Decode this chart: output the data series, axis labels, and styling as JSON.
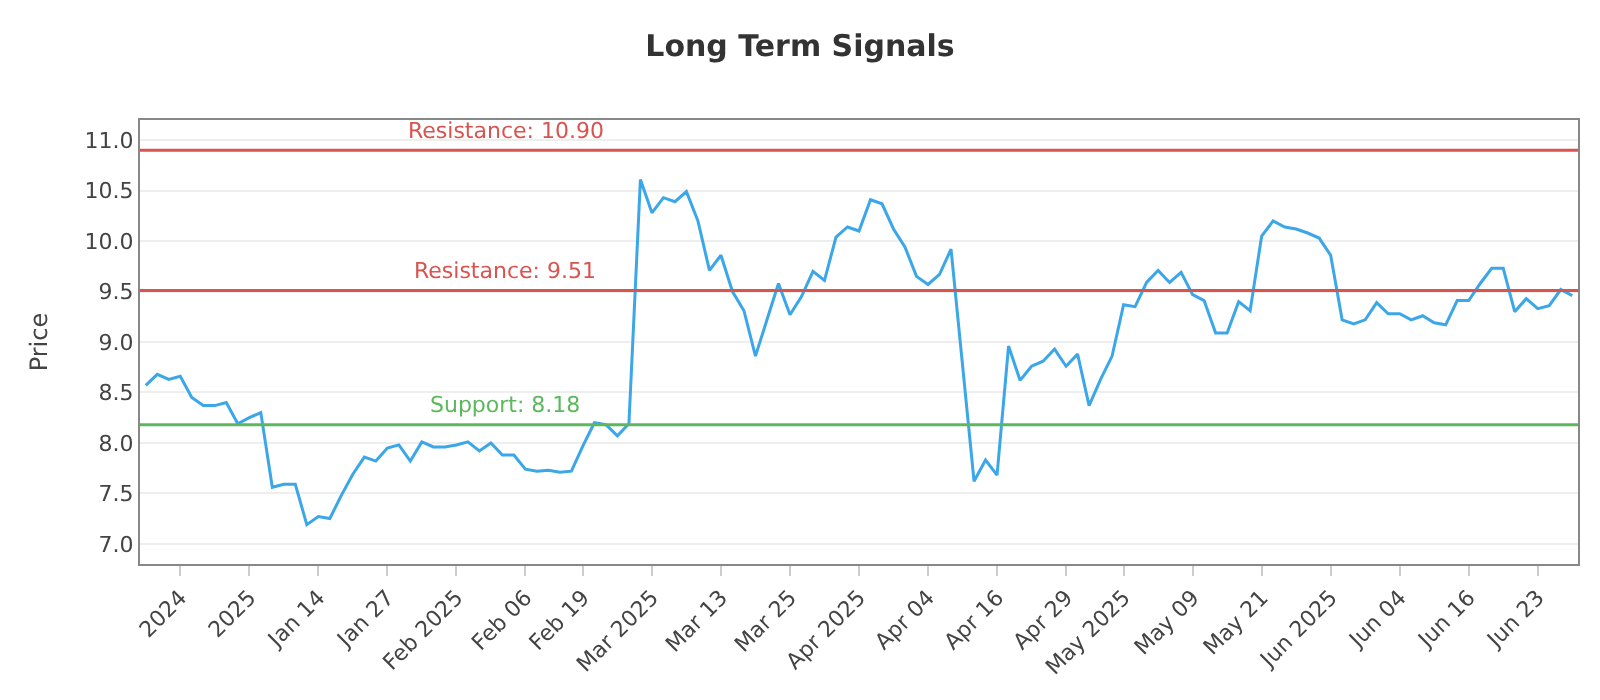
{
  "chart_data": {
    "type": "line",
    "title": "Long Term Signals",
    "ylabel": "Price",
    "categories": [
      null,
      null,
      null,
      "2024",
      null,
      null,
      null,
      null,
      null,
      "2025",
      null,
      null,
      null,
      null,
      null,
      "Jan 14",
      null,
      null,
      null,
      null,
      null,
      "Jan 27",
      null,
      null,
      null,
      null,
      null,
      "Feb 2025",
      null,
      null,
      null,
      null,
      null,
      "Feb 06",
      null,
      null,
      null,
      null,
      "Feb 19",
      null,
      null,
      null,
      null,
      null,
      "Mar 2025",
      null,
      null,
      null,
      null,
      null,
      "Mar 13",
      null,
      null,
      null,
      null,
      null,
      "Mar 25",
      null,
      null,
      null,
      null,
      null,
      "Apr 2025",
      null,
      null,
      null,
      null,
      null,
      "Apr 04",
      null,
      null,
      null,
      null,
      null,
      "Apr 16",
      null,
      null,
      null,
      null,
      null,
      "Apr 29",
      null,
      null,
      null,
      null,
      "May 2025",
      null,
      null,
      null,
      null,
      null,
      "May 09",
      null,
      null,
      null,
      null,
      null,
      "May 21",
      null,
      null,
      null,
      null,
      null,
      "Jun 2025",
      null,
      null,
      null,
      null,
      null,
      "Jun 04",
      null,
      null,
      null,
      null,
      null,
      "Jun 16",
      null,
      null,
      null,
      null,
      null,
      "Jun 23",
      null,
      null,
      null
    ],
    "series": [
      {
        "color": "#3ba6e8",
        "values": [
          8.57,
          8.68,
          8.63,
          8.66,
          8.45,
          8.37,
          8.37,
          8.4,
          8.19,
          8.25,
          8.3,
          7.56,
          7.59,
          7.59,
          7.19,
          7.27,
          7.25,
          7.48,
          7.69,
          7.86,
          7.82,
          7.95,
          7.98,
          7.82,
          8.01,
          7.96,
          7.96,
          7.98,
          8.01,
          7.92,
          8.0,
          7.88,
          7.88,
          7.74,
          7.72,
          7.73,
          7.71,
          7.72,
          7.97,
          8.2,
          8.18,
          8.07,
          8.19,
          10.61,
          10.28,
          10.43,
          10.39,
          10.49,
          10.2,
          9.71,
          9.86,
          9.5,
          9.31,
          8.86,
          9.22,
          9.58,
          9.27,
          9.45,
          9.7,
          9.61,
          10.04,
          10.14,
          10.1,
          10.41,
          10.37,
          10.12,
          9.94,
          9.65,
          9.57,
          9.67,
          9.92,
          8.77,
          7.62,
          7.83,
          7.68,
          8.96,
          8.62,
          8.76,
          8.81,
          8.93,
          8.76,
          8.88,
          8.37,
          8.63,
          8.86,
          9.37,
          9.35,
          9.59,
          9.71,
          9.59,
          9.69,
          9.47,
          9.41,
          9.09,
          9.09,
          9.4,
          9.31,
          10.05,
          10.2,
          10.14,
          10.12,
          10.08,
          10.03,
          9.86,
          9.22,
          9.18,
          9.22,
          9.39,
          9.28,
          9.28,
          9.22,
          9.26,
          9.19,
          9.17,
          9.41,
          9.41,
          9.58,
          9.73,
          9.73,
          9.3,
          9.43,
          9.33,
          9.36,
          9.52,
          9.46
        ]
      }
    ],
    "ylim": [
      6.8,
      11.2
    ],
    "yticks": [
      {
        "value": 7.0,
        "label": "7.0"
      },
      {
        "value": 7.5,
        "label": "7.5"
      },
      {
        "value": 8.0,
        "label": "8.0"
      },
      {
        "value": 8.5,
        "label": "8.5"
      },
      {
        "value": 9.0,
        "label": "9.0"
      },
      {
        "value": 9.5,
        "label": "9.5"
      },
      {
        "value": 10.0,
        "label": "10.0"
      },
      {
        "value": 10.5,
        "label": "10.5"
      },
      {
        "value": 11.0,
        "label": "11.0"
      }
    ],
    "ref_lines": [
      {
        "axis": "y",
        "value": 10.9,
        "label": "Resistance: 10.90",
        "color": "#d9534f"
      },
      {
        "axis": "y",
        "value": 9.51,
        "label": "Resistance: 9.51",
        "color": "#d9534f"
      },
      {
        "axis": "y",
        "value": 8.18,
        "label": "Support: 8.18",
        "color": "#5cb85c"
      }
    ],
    "grid": "y",
    "marker": "none",
    "line_style": "solid"
  }
}
